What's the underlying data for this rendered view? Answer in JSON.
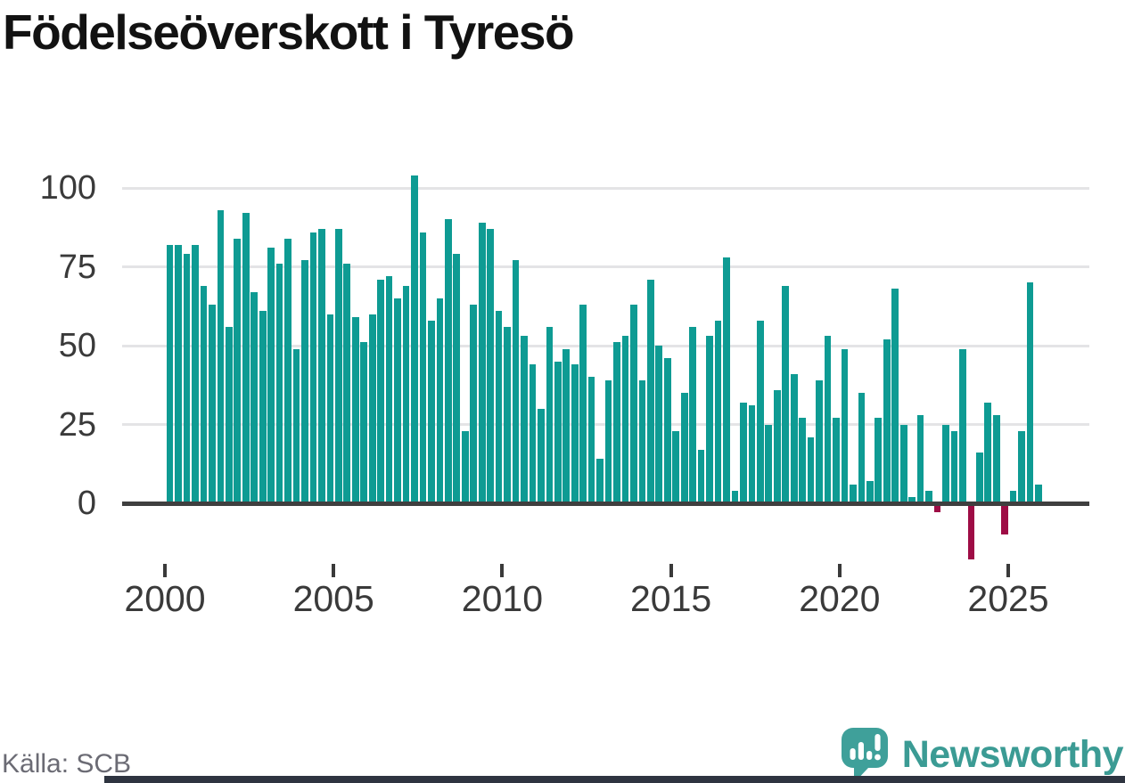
{
  "title": "Födelseöverskott i Tyresö",
  "source_label": "Källa: SCB",
  "logo": {
    "text": "Newsworthy",
    "icon": "newsworthy-speech-bubble-bar-chart-icon"
  },
  "colors": {
    "bar_positive": "#0e9b93",
    "bar_negative": "#9e0c45",
    "gridline": "#e4e4e6",
    "zero_line": "#3f3f3f",
    "axis_text": "#3a3a3a",
    "title_text": "#121212",
    "source_text": "#6b6b74",
    "brand_teal": "#3b9b94",
    "footer_bar": "#2e3440"
  },
  "chart_data": {
    "type": "bar",
    "title": "Födelseöverskott i Tyresö",
    "frequency": "quarterly",
    "x_start": "2000-Q1",
    "x_end": "2025-Q4",
    "x_ticks": [
      2000,
      2005,
      2010,
      2015,
      2020,
      2025
    ],
    "y_ticks": [
      0,
      25,
      50,
      75,
      100
    ],
    "ylim": [
      -20,
      110
    ],
    "grid": true,
    "legend": false,
    "values": [
      82,
      82,
      79,
      82,
      69,
      63,
      93,
      56,
      84,
      92,
      67,
      61,
      81,
      76,
      84,
      49,
      77,
      86,
      87,
      60,
      87,
      76,
      59,
      51,
      60,
      71,
      72,
      65,
      69,
      104,
      86,
      58,
      65,
      90,
      79,
      23,
      63,
      89,
      87,
      61,
      56,
      77,
      53,
      44,
      30,
      56,
      45,
      49,
      44,
      63,
      40,
      14,
      39,
      51,
      53,
      63,
      39,
      71,
      50,
      46,
      23,
      35,
      56,
      17,
      53,
      58,
      78,
      4,
      32,
      31,
      58,
      25,
      36,
      69,
      41,
      27,
      21,
      39,
      53,
      27,
      49,
      6,
      35,
      7,
      27,
      52,
      68,
      25,
      2,
      28,
      4,
      -2,
      25,
      23,
      49,
      -17,
      16,
      32,
      28,
      -9,
      4,
      23,
      70,
      6
    ]
  }
}
